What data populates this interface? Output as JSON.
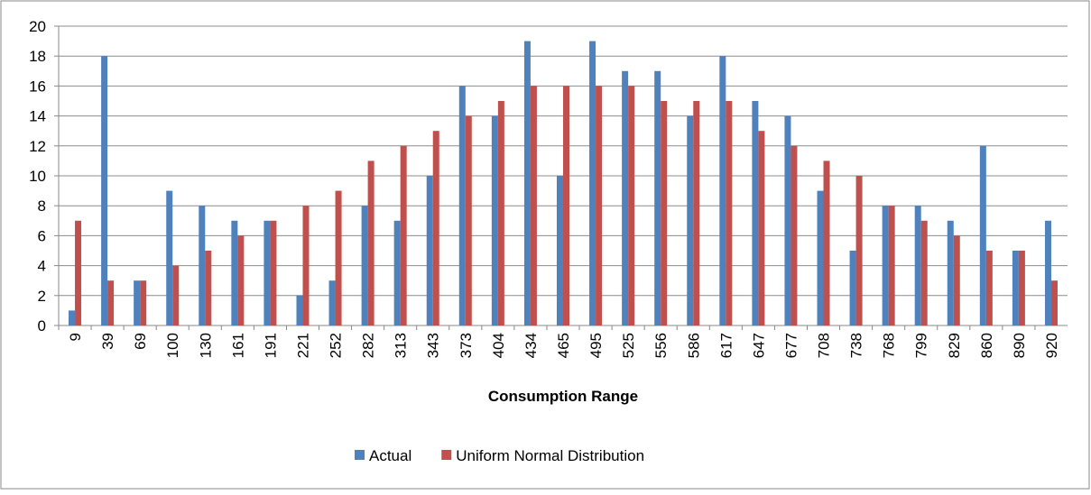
{
  "chart_data": {
    "type": "bar",
    "x_label": "Consumption Range",
    "categories": [
      "9",
      "39",
      "69",
      "100",
      "130",
      "161",
      "191",
      "221",
      "252",
      "282",
      "313",
      "343",
      "373",
      "404",
      "434",
      "465",
      "495",
      "525",
      "556",
      "586",
      "617",
      "647",
      "677",
      "708",
      "738",
      "768",
      "799",
      "829",
      "860",
      "890",
      "920"
    ],
    "series": [
      {
        "name": "Actual",
        "color": "#4f81bd",
        "values": [
          1,
          18,
          3,
          9,
          8,
          7,
          7,
          2,
          3,
          8,
          7,
          10,
          16,
          14,
          19,
          10,
          19,
          17,
          17,
          14,
          18,
          15,
          14,
          9,
          5,
          8,
          8,
          7,
          12,
          5,
          7
        ]
      },
      {
        "name": "Uniform Normal Distribution",
        "color": "#c0504d",
        "values": [
          7,
          3,
          3,
          4,
          5,
          6,
          7,
          8,
          9,
          11,
          12,
          13,
          14,
          15,
          16,
          16,
          16,
          16,
          15,
          15,
          15,
          13,
          12,
          11,
          10,
          8,
          7,
          6,
          5,
          5,
          3
        ]
      }
    ],
    "ylim": [
      0,
      20
    ],
    "yticks": [
      0,
      2,
      4,
      6,
      8,
      10,
      12,
      14,
      16,
      18,
      20
    ],
    "grid": true,
    "legend": "bottom"
  }
}
